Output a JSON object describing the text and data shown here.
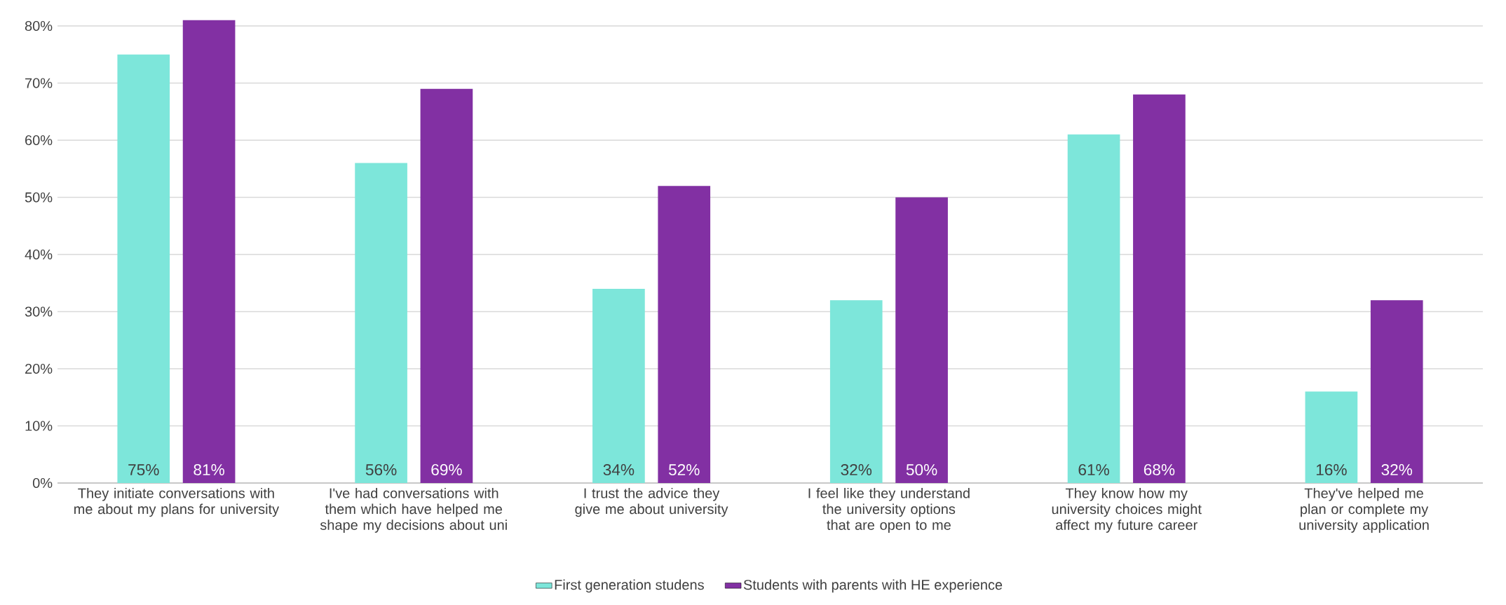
{
  "chart_data": {
    "type": "bar",
    "categories": [
      "They initiate conversations with me about my plans for university",
      "I've had conversations with them which have helped me shape my decisions about uni",
      "I trust the advice they give me about university",
      "I feel like they understand the university options that are open to me",
      "They know how my university choices might affect my future career",
      "They've helped me plan or complete my university application"
    ],
    "series": [
      {
        "name": "First generation studens",
        "color": "#7de6da",
        "values": [
          75,
          56,
          34,
          32,
          61,
          16
        ],
        "value_labels": [
          "75%",
          "56%",
          "34%",
          "32%",
          "61%",
          "16%"
        ]
      },
      {
        "name": "Students with parents with HE experience",
        "color": "#8230a3",
        "values": [
          81,
          69,
          52,
          50,
          68,
          32
        ],
        "value_labels": [
          "81%",
          "69%",
          "52%",
          "50%",
          "68%",
          "32%"
        ]
      }
    ],
    "ylim": [
      0,
      81
    ],
    "yticks": [
      {
        "value": 0,
        "label": "0%"
      },
      {
        "value": 10,
        "label": "10%"
      },
      {
        "value": 20,
        "label": "20%"
      },
      {
        "value": 30,
        "label": "30%"
      },
      {
        "value": 40,
        "label": "40%"
      },
      {
        "value": 50,
        "label": "50%"
      },
      {
        "value": 60,
        "label": "60%"
      },
      {
        "value": 70,
        "label": "70%"
      },
      {
        "value": 80,
        "label": "80%"
      }
    ],
    "grid": "y",
    "legend": "bottom"
  }
}
